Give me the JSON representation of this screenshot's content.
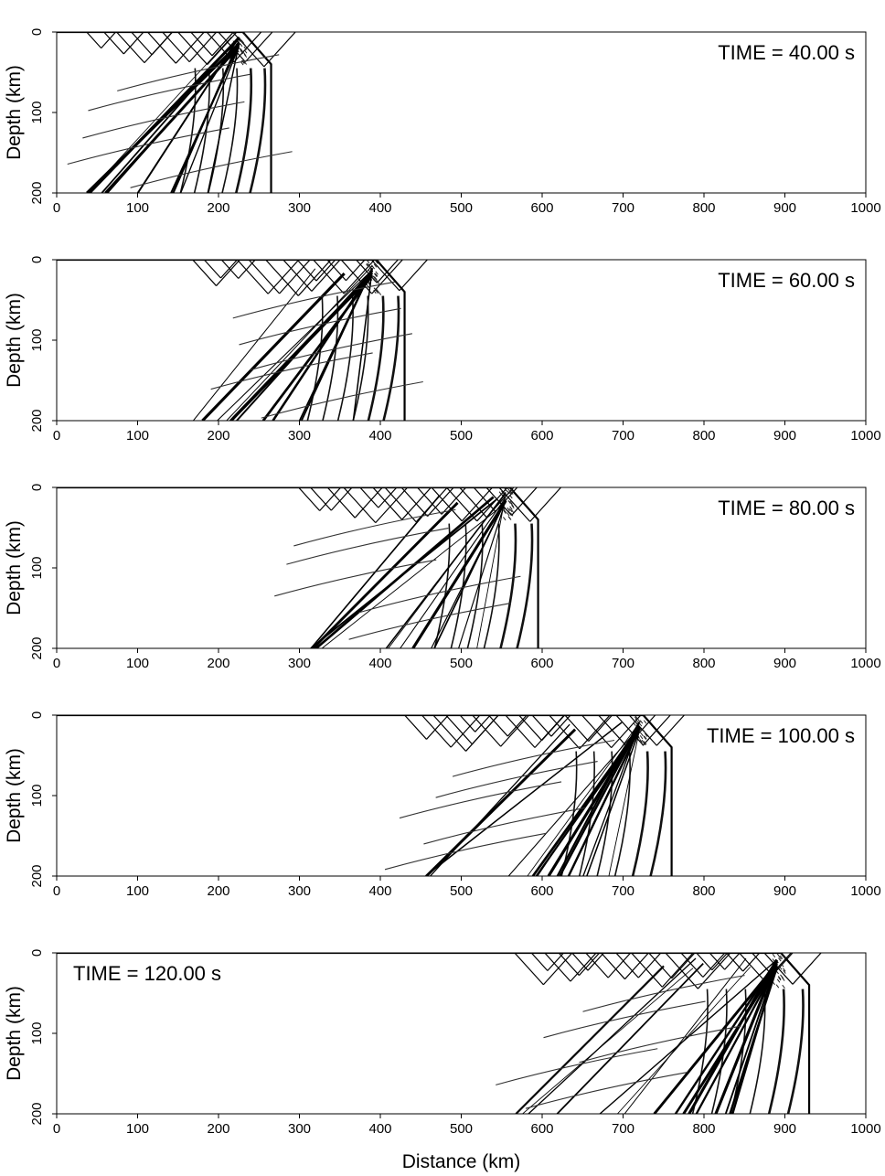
{
  "chart_data": [
    {
      "type": "wavefield-snapshot",
      "panel": 1,
      "time_label": "TIME =   40.00 s",
      "time_s": 40,
      "legend_position": "top-right",
      "ylabel": "Depth (km)",
      "xlabel": "",
      "xlim": [
        0,
        1000
      ],
      "ylim": [
        0,
        200
      ],
      "x_ticks": [
        "0",
        "100",
        "200",
        "300",
        "400",
        "500",
        "600",
        "700",
        "800",
        "900",
        "1000"
      ],
      "y_ticks": [
        "0",
        "100",
        "200"
      ],
      "wavefront_extent_km": 265,
      "grid": false
    },
    {
      "type": "wavefield-snapshot",
      "panel": 2,
      "time_label": "TIME =   60.00 s",
      "time_s": 60,
      "legend_position": "top-right",
      "ylabel": "Depth (km)",
      "xlabel": "",
      "xlim": [
        0,
        1000
      ],
      "ylim": [
        0,
        200
      ],
      "x_ticks": [
        "0",
        "100",
        "200",
        "300",
        "400",
        "500",
        "600",
        "700",
        "800",
        "900",
        "1000"
      ],
      "y_ticks": [
        "0",
        "100",
        "200"
      ],
      "wavefront_extent_km": 430,
      "grid": false
    },
    {
      "type": "wavefield-snapshot",
      "panel": 3,
      "time_label": "TIME =   80.00 s",
      "time_s": 80,
      "legend_position": "top-right",
      "ylabel": "Depth (km)",
      "xlabel": "",
      "xlim": [
        0,
        1000
      ],
      "ylim": [
        0,
        200
      ],
      "x_ticks": [
        "0",
        "100",
        "200",
        "300",
        "400",
        "500",
        "600",
        "700",
        "800",
        "900",
        "1000"
      ],
      "y_ticks": [
        "0",
        "100",
        "200"
      ],
      "wavefront_extent_km": 595,
      "grid": false
    },
    {
      "type": "wavefield-snapshot",
      "panel": 4,
      "time_label": "TIME =  100.00 s",
      "time_s": 100,
      "legend_position": "top-right",
      "ylabel": "Depth (km)",
      "xlabel": "",
      "xlim": [
        0,
        1000
      ],
      "ylim": [
        0,
        200
      ],
      "x_ticks": [
        "0",
        "100",
        "200",
        "300",
        "400",
        "500",
        "600",
        "700",
        "800",
        "900",
        "1000"
      ],
      "y_ticks": [
        "0",
        "100",
        "200"
      ],
      "wavefront_extent_km": 760,
      "grid": false
    },
    {
      "type": "wavefield-snapshot",
      "panel": 5,
      "time_label": "TIME =  120.00 s",
      "time_s": 120,
      "legend_position": "top-left",
      "ylabel": "Depth (km)",
      "xlabel": "Distance (km)",
      "xlim": [
        0,
        1000
      ],
      "ylim": [
        0,
        200
      ],
      "x_ticks": [
        "0",
        "100",
        "200",
        "300",
        "400",
        "500",
        "600",
        "700",
        "800",
        "900",
        "1000"
      ],
      "y_ticks": [
        "0",
        "100",
        "200"
      ],
      "wavefront_extent_km": 930,
      "grid": false
    }
  ]
}
